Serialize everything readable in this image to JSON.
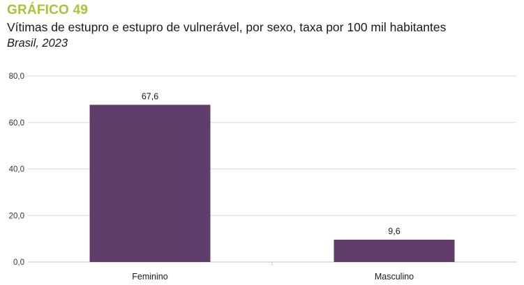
{
  "header": {
    "graph_label": "GRÁFICO 49",
    "title": "Vítimas de estupro e estupro de vulnerável, por sexo, taxa por 100 mil habitantes",
    "subtitle": "Brasil, 2023"
  },
  "chart_data": {
    "type": "bar",
    "categories": [
      "Feminino",
      "Masculino"
    ],
    "values": [
      67.6,
      9.6
    ],
    "value_labels": [
      "67,6",
      "9,6"
    ],
    "ylim": [
      0,
      80
    ],
    "yticks": [
      0,
      20,
      40,
      60,
      80
    ],
    "ytick_labels": [
      "0,0",
      "20,0",
      "40,0",
      "60,0",
      "80,0"
    ],
    "grid": true,
    "bar_color": "#613d6b",
    "grid_color": "#d9d9d9",
    "title": "",
    "xlabel": "",
    "ylabel": ""
  },
  "colors": {
    "graph_label": "#a8c23a"
  }
}
